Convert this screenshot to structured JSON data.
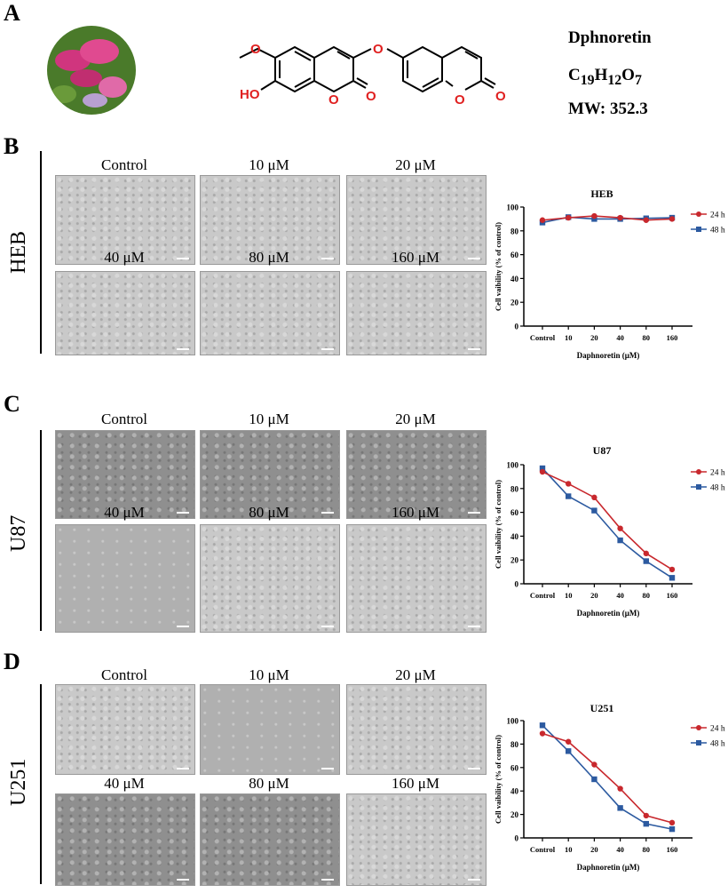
{
  "panel_labels": [
    "A",
    "B",
    "C",
    "D"
  ],
  "compound": {
    "name": "Dphnoretin",
    "formula_prefix": "C",
    "formula_19": "19",
    "formula_h": "H",
    "formula_12": "12",
    "formula_o": "O",
    "formula_7": "7",
    "mw": "MW: 352.3",
    "atom_ho": "HO",
    "atom_o": "O"
  },
  "conditions": [
    "Control",
    "10 μM",
    "20 μM",
    "40 μM",
    "80 μM",
    "160 μM"
  ],
  "cell_lines": [
    "HEB",
    "U87",
    "U251"
  ],
  "colors": {
    "h24": "#c8282d",
    "h48": "#2c5aa0",
    "atoms": "#e02020"
  },
  "chart_data": [
    {
      "type": "line",
      "title": "HEB",
      "xlabel": "Daphnoretin (μM)",
      "ylabel": "Cell vaibility (% of control)",
      "categories": [
        "Control",
        "10",
        "20",
        "40",
        "80",
        "160"
      ],
      "ylim": [
        0,
        100
      ],
      "yticks": [
        "0",
        "20",
        "40",
        "60",
        "80",
        "100"
      ],
      "legend": "right",
      "series": [
        {
          "name": "24 h",
          "values": [
            89,
            91,
            92.5,
            91,
            89,
            90
          ]
        },
        {
          "name": "48 h",
          "values": [
            87,
            91.5,
            90,
            90,
            90.5,
            91
          ]
        }
      ]
    },
    {
      "type": "line",
      "title": "U87",
      "xlabel": "Daphnoretin (μM)",
      "ylabel": "Cell vaibility (% of control)",
      "categories": [
        "Control",
        "10",
        "20",
        "40",
        "80",
        "160"
      ],
      "ylim": [
        0,
        100
      ],
      "yticks": [
        "0",
        "20",
        "40",
        "60",
        "80",
        "100"
      ],
      "legend": "right",
      "series": [
        {
          "name": "24 h",
          "values": [
            94,
            84,
            72.5,
            46.5,
            25.5,
            12
          ]
        },
        {
          "name": "48 h",
          "values": [
            97,
            73.5,
            61.5,
            36.5,
            19,
            5
          ]
        }
      ]
    },
    {
      "type": "line",
      "title": "U251",
      "xlabel": "Daphnoretin (μM)",
      "ylabel": "Cell vaibility (% of control)",
      "categories": [
        "Control",
        "10",
        "20",
        "40",
        "80",
        "160"
      ],
      "ylim": [
        0,
        100
      ],
      "yticks": [
        "0",
        "20",
        "40",
        "60",
        "80",
        "100"
      ],
      "legend": "right",
      "series": [
        {
          "name": "24 h",
          "values": [
            89,
            82,
            62.5,
            42,
            19,
            13
          ]
        },
        {
          "name": "48 h",
          "values": [
            96,
            74,
            50,
            25.5,
            12,
            7.5
          ]
        }
      ]
    }
  ]
}
